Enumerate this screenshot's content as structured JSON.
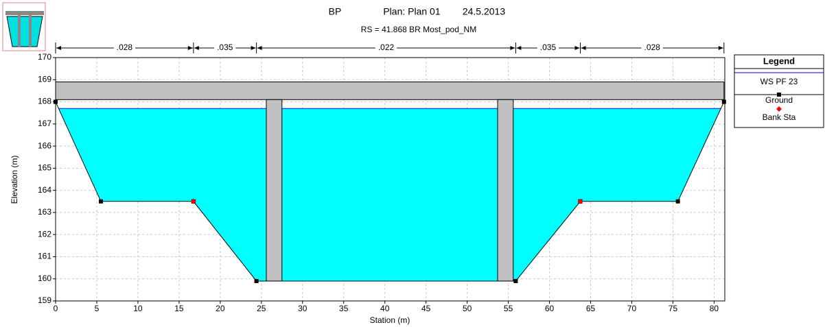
{
  "chart_data": {
    "type": "cross-section",
    "title": "BP",
    "plan": "Plan: Plan 01",
    "date": "24.5.2013",
    "subtitle": "RS = 41.868  BR  Most_pod_NM",
    "xlabel": "Station (m)",
    "ylabel": "Elevation (m)",
    "xlim": [
      0,
      81.3
    ],
    "ylim": [
      159,
      170
    ],
    "xticks": [
      0,
      5,
      10,
      15,
      20,
      25,
      30,
      35,
      40,
      45,
      50,
      55,
      60,
      65,
      70,
      75,
      80
    ],
    "yticks": [
      159,
      160,
      161,
      162,
      163,
      164,
      165,
      166,
      167,
      168,
      169,
      170
    ],
    "grid": true,
    "legend": {
      "title": "Legend",
      "position": "right"
    },
    "water_color": "#00ffff",
    "ws": {
      "name": "WS PF 23",
      "color": "#0000ff",
      "value": 167.7
    },
    "ground": {
      "name": "Ground",
      "color": "#000000",
      "x": [
        0,
        5.5,
        16.75,
        24.4,
        55.9,
        63.75,
        75.6,
        81.2
      ],
      "values": [
        168,
        163.5,
        163.5,
        159.9,
        159.9,
        163.5,
        163.5,
        168
      ]
    },
    "bank": {
      "name": "Bank Sta",
      "color": "#ff0000",
      "x": [
        16.75,
        63.75
      ],
      "values": [
        163.5,
        163.5
      ]
    },
    "bridge": {
      "color": "#c0c0c0",
      "deck": {
        "x": [
          0,
          81.2
        ],
        "top": 168.9,
        "bottom": 168.1
      },
      "piers": [
        {
          "x": [
            25.6,
            27.5
          ],
          "bottom": 159.9
        },
        {
          "x": [
            53.7,
            55.6
          ],
          "bottom": 159.9
        }
      ]
    },
    "manning": {
      "labels": [
        ".028",
        ".035",
        ".022",
        ".035",
        ".028"
      ],
      "stations": [
        0,
        16.75,
        24.4,
        55.9,
        63.75,
        81.2
      ]
    }
  }
}
